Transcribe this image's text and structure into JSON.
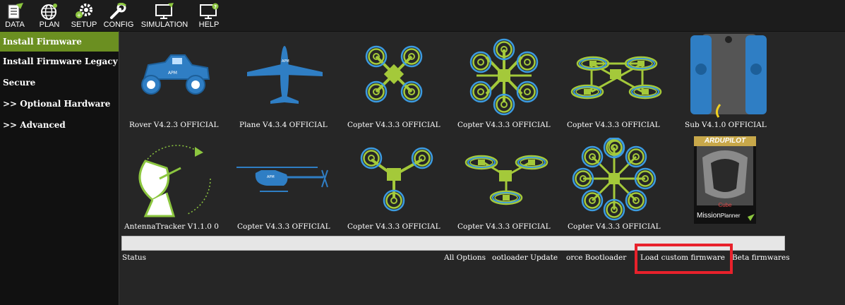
{
  "toolbar": {
    "items": [
      {
        "label": "DATA",
        "icon": "data-icon"
      },
      {
        "label": "PLAN",
        "icon": "globe-icon"
      },
      {
        "label": "SETUP",
        "icon": "gears-icon"
      },
      {
        "label": "CONFIG",
        "icon": "wrench-icon"
      },
      {
        "label": "SIMULATION",
        "icon": "monitor-icon"
      },
      {
        "label": "HELP",
        "icon": "help-monitor-icon"
      }
    ]
  },
  "sidebar": {
    "items": [
      {
        "label": "Install Firmware",
        "active": true
      },
      {
        "label": "Install Firmware Legacy"
      },
      {
        "label": "Secure"
      },
      {
        "label": ">> Optional Hardware"
      },
      {
        "label": ">> Advanced"
      }
    ]
  },
  "firmware": [
    {
      "label": "Rover V4.2.3 OFFICIAL",
      "icon": "rover-icon"
    },
    {
      "label": "Plane V4.3.4 OFFICIAL",
      "icon": "plane-icon"
    },
    {
      "label": "Copter V4.3.3 OFFICIAL",
      "icon": "quadcopter-icon"
    },
    {
      "label": "Copter V4.3.3 OFFICIAL",
      "icon": "hexacopter-icon"
    },
    {
      "label": "Copter V4.3.3 OFFICIAL",
      "icon": "hexa-coax-icon"
    },
    {
      "label": "Sub V4.1.0 OFFICIAL",
      "icon": "sub-icon"
    },
    {
      "label": "AntennaTracker  V1.1.0 0",
      "icon": "antenna-tracker-icon"
    },
    {
      "label": "Copter V4.3.3 OFFICIAL",
      "icon": "helicopter-icon"
    },
    {
      "label": "Copter V4.3.3 OFFICIAL",
      "icon": "tricopter-icon"
    },
    {
      "label": "Copter V4.3.3 OFFICIAL",
      "icon": "y6-icon"
    },
    {
      "label": "Copter V4.3.3 OFFICIAL",
      "icon": "octocopter-icon"
    }
  ],
  "cube": {
    "brand": "ARDUPILOT",
    "cube": "Cube",
    "app1": "Mission",
    "app2": "Planner"
  },
  "bottom": {
    "status": "Status",
    "all_options": "All Options",
    "bootloader_update": "ootloader Update",
    "force_bootloader": "orce Bootloader",
    "load_custom": "Load custom firmware",
    "beta": "Beta firmwares"
  },
  "colors": {
    "accent": "#6b8f21",
    "highlight": "#e8212b",
    "frame_green": "#a4c93a",
    "prop_blue": "#3c9be0"
  }
}
